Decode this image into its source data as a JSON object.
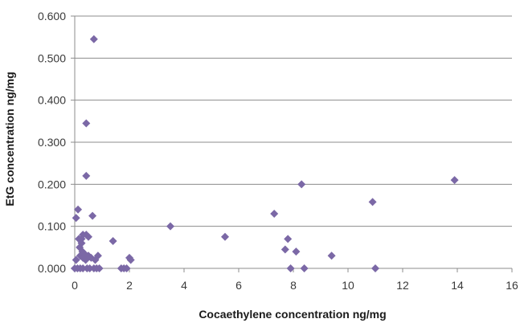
{
  "chart_data": {
    "type": "scatter",
    "xlabel": "Cocaethylene concentration ng/mg",
    "ylabel": "EtG concentration ng/mg",
    "xlim": [
      0,
      16
    ],
    "ylim": [
      0,
      0.6
    ],
    "xticks": [
      "0",
      "2",
      "4",
      "6",
      "8",
      "10",
      "12",
      "14",
      "16"
    ],
    "yticks": [
      "0.000",
      "0.100",
      "0.200",
      "0.300",
      "0.400",
      "0.500",
      "0.600"
    ],
    "grid": true,
    "marker_color": "#7b68a6",
    "series": [
      {
        "points": [
          [
            0.0,
            0.0
          ],
          [
            0.05,
            0.02
          ],
          [
            0.05,
            0.12
          ],
          [
            0.1,
            0.0
          ],
          [
            0.12,
            0.14
          ],
          [
            0.15,
            0.07
          ],
          [
            0.18,
            0.05
          ],
          [
            0.2,
            0.03
          ],
          [
            0.2,
            0.0
          ],
          [
            0.25,
            0.07
          ],
          [
            0.25,
            0.06
          ],
          [
            0.28,
            0.04
          ],
          [
            0.3,
            0.08
          ],
          [
            0.3,
            0.0
          ],
          [
            0.3,
            0.025
          ],
          [
            0.35,
            0.035
          ],
          [
            0.4,
            0.03
          ],
          [
            0.4,
            0.02
          ],
          [
            0.42,
            0.08
          ],
          [
            0.45,
            0.0
          ],
          [
            0.42,
            0.345
          ],
          [
            0.42,
            0.22
          ],
          [
            0.5,
            0.075
          ],
          [
            0.5,
            0.03
          ],
          [
            0.55,
            0.0
          ],
          [
            0.6,
            0.025
          ],
          [
            0.65,
            0.125
          ],
          [
            0.7,
            0.0
          ],
          [
            0.7,
            0.545
          ],
          [
            0.75,
            0.02
          ],
          [
            0.8,
            0.0
          ],
          [
            0.85,
            0.03
          ],
          [
            0.9,
            0.0
          ],
          [
            1.4,
            0.065
          ],
          [
            1.7,
            0.0
          ],
          [
            1.8,
            0.0
          ],
          [
            1.9,
            0.0
          ],
          [
            2.0,
            0.025
          ],
          [
            2.05,
            0.02
          ],
          [
            3.5,
            0.1
          ],
          [
            5.5,
            0.075
          ],
          [
            7.3,
            0.13
          ],
          [
            7.7,
            0.045
          ],
          [
            7.8,
            0.07
          ],
          [
            7.9,
            0.0
          ],
          [
            8.1,
            0.04
          ],
          [
            8.3,
            0.2
          ],
          [
            8.4,
            0.0
          ],
          [
            9.4,
            0.03
          ],
          [
            10.9,
            0.158
          ],
          [
            11.0,
            0.0
          ],
          [
            13.9,
            0.21
          ]
        ]
      }
    ]
  }
}
